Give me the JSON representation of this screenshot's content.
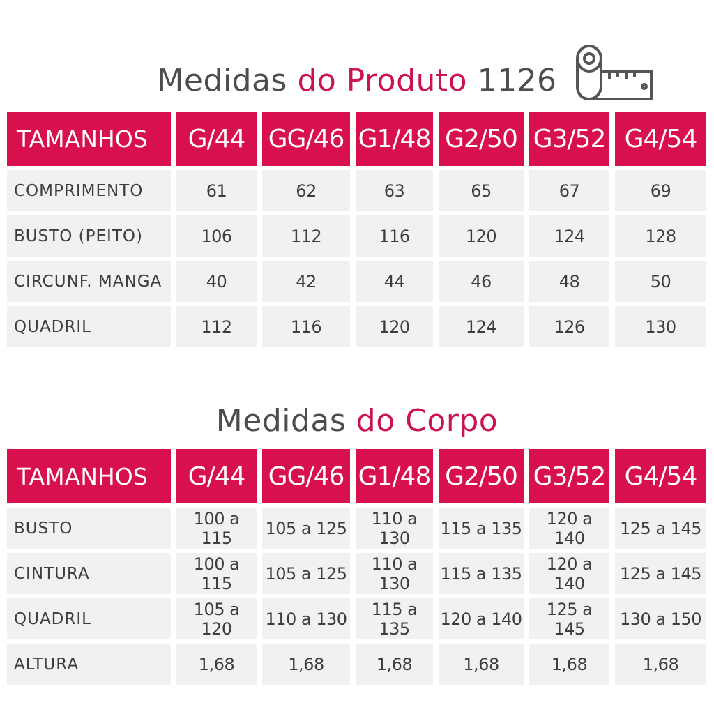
{
  "product": {
    "title_part1": "Medidas",
    "title_part2": "do Produto",
    "title_part3": "1126",
    "header": [
      "TAMANHOS",
      "G/44",
      "GG/46",
      "G1/48",
      "G2/50",
      "G3/52",
      "G4/54"
    ],
    "rows": [
      [
        "COMPRIMENTO",
        "61",
        "62",
        "63",
        "65",
        "67",
        "69"
      ],
      [
        "BUSTO (PEITO)",
        "106",
        "112",
        "116",
        "120",
        "124",
        "128"
      ],
      [
        "CIRCUNF. MANGA",
        "40",
        "42",
        "44",
        "46",
        "48",
        "50"
      ],
      [
        "QUADRIL",
        "112",
        "116",
        "120",
        "124",
        "126",
        "130"
      ]
    ]
  },
  "body": {
    "title_part1": "Medidas",
    "title_part2": "do Corpo",
    "header": [
      "TAMANHOS",
      "G/44",
      "GG/46",
      "G1/48",
      "G2/50",
      "G3/52",
      "G4/54"
    ],
    "rows": [
      [
        "BUSTO",
        "100 a 115",
        "105 a 125",
        "110 a 130",
        "115 a 135",
        "120 a 140",
        "125 a 145"
      ],
      [
        "CINTURA",
        "100 a 115",
        "105 a 125",
        "110 a 130",
        "115 a 135",
        "120 a 140",
        "125 a 145"
      ],
      [
        "QUADRIL",
        "105 a 120",
        "110 a 130",
        "115 a 135",
        "120 a 140",
        "125 a 145",
        "130 a 150"
      ],
      [
        "ALTURA",
        "1,68",
        "1,68",
        "1,68",
        "1,68",
        "1,68",
        "1,68"
      ]
    ]
  },
  "icons": {
    "tape": "measuring-tape-icon"
  },
  "colors": {
    "accent": "#d8114e",
    "title_gray": "#4d4d4d",
    "cell_bg": "#f1f1f1"
  }
}
